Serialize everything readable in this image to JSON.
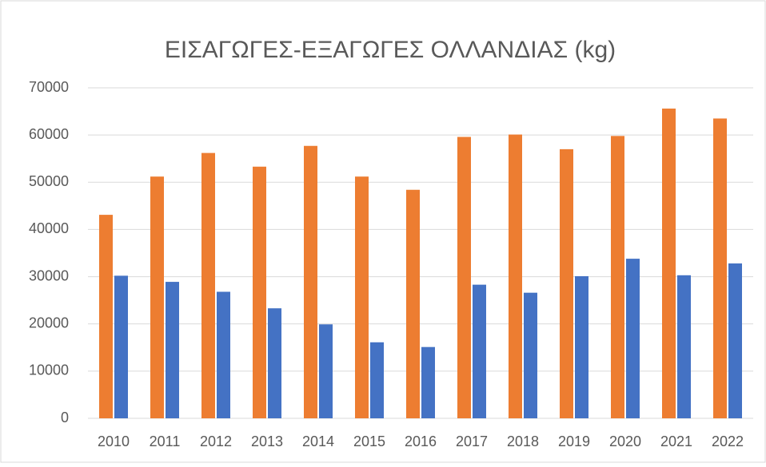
{
  "chart_data": {
    "type": "bar",
    "title": "ΕΙΣΑΓΩΓΕΣ-ΕΞΑΓΩΓΕΣ  ΟΛΛΑΝΔΙΑΣ (kg)",
    "categories": [
      "2010",
      "2011",
      "2012",
      "2013",
      "2014",
      "2015",
      "2016",
      "2017",
      "2018",
      "2019",
      "2020",
      "2021",
      "2022"
    ],
    "series": [
      {
        "color": "#ed7d31",
        "values": [
          43100,
          51200,
          56200,
          53300,
          57700,
          51200,
          48400,
          59600,
          60100,
          57000,
          59800,
          65600,
          63500
        ]
      },
      {
        "color": "#4472c4",
        "values": [
          30200,
          28900,
          26800,
          23300,
          19900,
          16100,
          15100,
          28300,
          26600,
          30100,
          33800,
          30300,
          32800
        ]
      }
    ],
    "ylim": [
      0,
      70000
    ],
    "yticks": [
      0,
      10000,
      20000,
      30000,
      40000,
      50000,
      60000,
      70000
    ],
    "grid": true
  }
}
